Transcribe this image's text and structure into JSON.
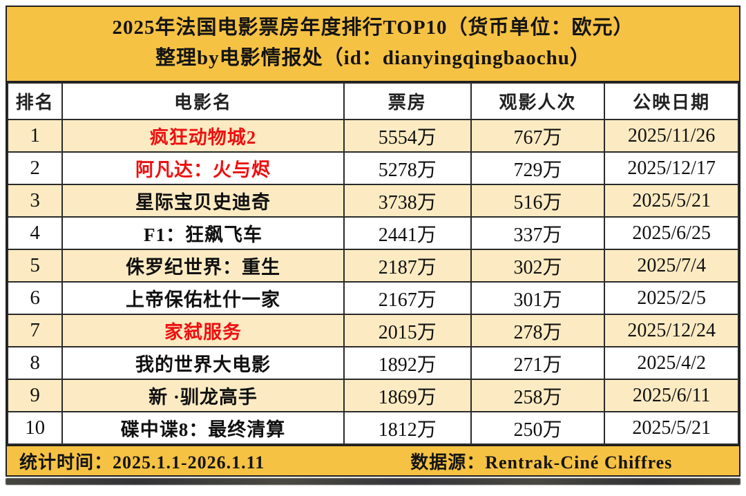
{
  "header": {
    "title_line1": "2025年法国电影票房年度排行TOP10（货币单位：欧元）",
    "title_line2": "整理by电影情报处（id：dianyingqingbaochu）"
  },
  "table": {
    "columns": [
      "排名",
      "电影名",
      "票房",
      "观影人次",
      "公映日期"
    ],
    "rows": [
      {
        "rank": "1",
        "name": "疯狂动物城2",
        "box_office": "5554万",
        "admissions": "767万",
        "release_date": "2025/11/26",
        "red": true
      },
      {
        "rank": "2",
        "name": "阿凡达：火与烬",
        "box_office": "5278万",
        "admissions": "729万",
        "release_date": "2025/12/17",
        "red": true
      },
      {
        "rank": "3",
        "name": "星际宝贝史迪奇",
        "box_office": "3738万",
        "admissions": "516万",
        "release_date": "2025/5/21",
        "red": false
      },
      {
        "rank": "4",
        "name": "F1：狂飙飞车",
        "box_office": "2441万",
        "admissions": "337万",
        "release_date": "2025/6/25",
        "red": false
      },
      {
        "rank": "5",
        "name": "侏罗纪世界：重生",
        "box_office": "2187万",
        "admissions": "302万",
        "release_date": "2025/7/4",
        "red": false
      },
      {
        "rank": "6",
        "name": "上帝保佑杜什一家",
        "box_office": "2167万",
        "admissions": "301万",
        "release_date": "2025/2/5",
        "red": false
      },
      {
        "rank": "7",
        "name": "家弑服务",
        "box_office": "2015万",
        "admissions": "278万",
        "release_date": "2025/12/24",
        "red": true
      },
      {
        "rank": "8",
        "name": "我的世界大电影",
        "box_office": "1892万",
        "admissions": "271万",
        "release_date": "2025/4/2",
        "red": false
      },
      {
        "rank": "9",
        "name": "新 ·驯龙高手",
        "box_office": "1869万",
        "admissions": "258万",
        "release_date": "2025/6/11",
        "red": false
      },
      {
        "rank": "10",
        "name": "碟中谍8：最终清算",
        "box_office": "1812万",
        "admissions": "250万",
        "release_date": "2025/5/21",
        "red": false
      }
    ]
  },
  "footer": {
    "stats_period": "统计时间：2025.1.1-2026.1.11",
    "source": "数据源：Rentrak-Ciné Chiffres"
  },
  "colors": {
    "header_gold": "#F6C243",
    "row_cream": "#FCEBC2",
    "highlight_red": "#EE1010",
    "border": "#2A2A2A",
    "text": "#141414"
  },
  "chart_data": {
    "type": "table",
    "title": "2025年法国电影票房年度排行TOP10（货币单位：欧元）",
    "subtitle": "整理by电影情报处（id：dianyingqingbaochu）",
    "columns": [
      "排名",
      "电影名",
      "票房",
      "观影人次",
      "公映日期"
    ],
    "rows": [
      [
        "1",
        "疯狂动物城2",
        "5554万",
        "767万",
        "2025/11/26"
      ],
      [
        "2",
        "阿凡达：火与烬",
        "5278万",
        "729万",
        "2025/12/17"
      ],
      [
        "3",
        "星际宝贝史迪奇",
        "3738万",
        "516万",
        "2025/5/21"
      ],
      [
        "4",
        "F1：狂飙飞车",
        "2441万",
        "337万",
        "2025/6/25"
      ],
      [
        "5",
        "侏罗纪世界：重生",
        "2187万",
        "302万",
        "2025/7/4"
      ],
      [
        "6",
        "上帝保佑杜什一家",
        "2167万",
        "301万",
        "2025/2/5"
      ],
      [
        "7",
        "家弑服务",
        "2015万",
        "278万",
        "2025/12/24"
      ],
      [
        "8",
        "我的世界大电影",
        "1892万",
        "271万",
        "2025/4/2"
      ],
      [
        "9",
        "新 ·驯龙高手",
        "1869万",
        "258万",
        "2025/6/11"
      ],
      [
        "10",
        "碟中谍8：最终清算",
        "1812万",
        "250万",
        "2025/5/21"
      ]
    ],
    "highlighted_red_rows": [
      1,
      2,
      7
    ],
    "notes": [
      "统计时间：2025.1.1-2026.1.11",
      "数据源：Rentrak-Ciné Chiffres"
    ]
  }
}
